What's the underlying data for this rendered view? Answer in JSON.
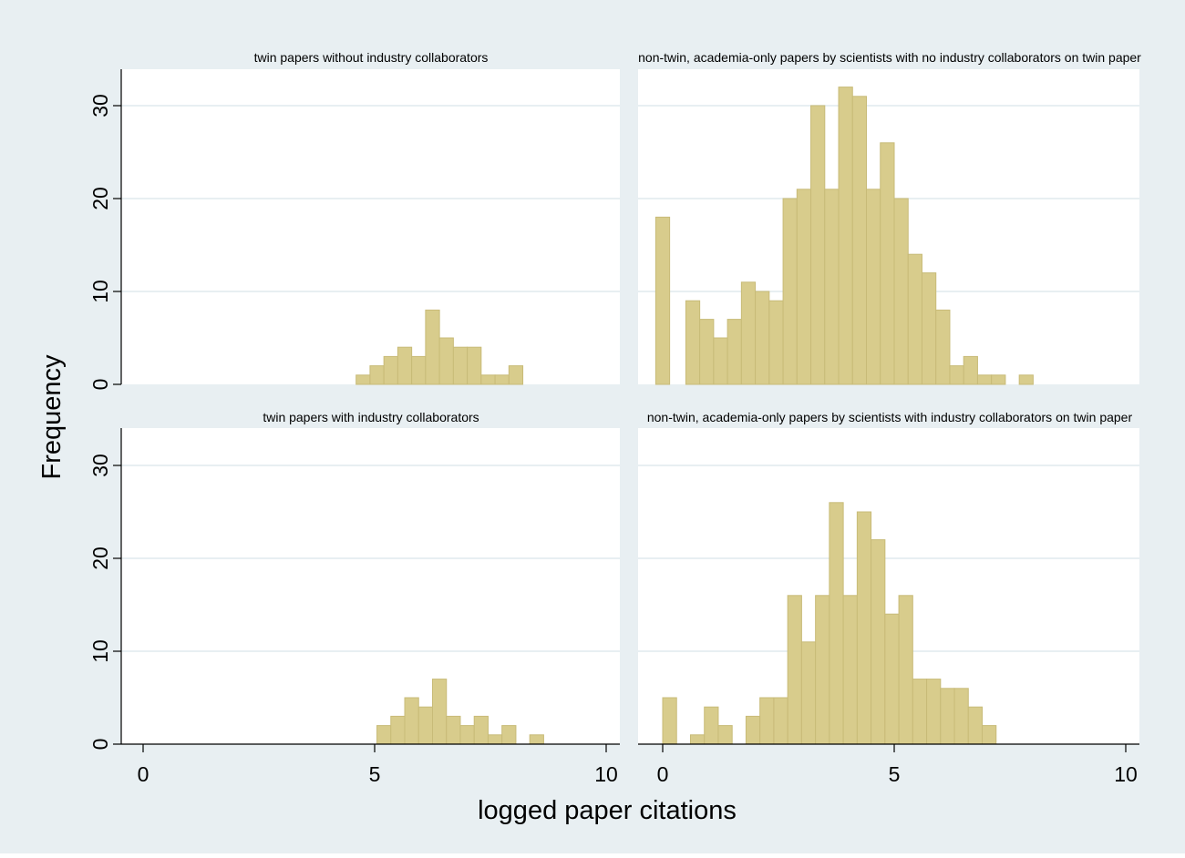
{
  "figure": {
    "ylabel": "Frequency",
    "xlabel": "logged paper citations",
    "colors": {
      "outer_background": "#e8eff2",
      "inner_background": "#ffffff",
      "grid": "#e8eff2",
      "bar_fill": "#d8cc8c",
      "bar_stroke": "#c8bb78",
      "axis": "#000000"
    }
  },
  "chart_data": [
    {
      "type": "bar",
      "title": "twin papers without industry collaborators",
      "xlabel": "",
      "ylabel": "",
      "xlim": [
        -0.5,
        10.5
      ],
      "ylim": [
        0,
        34
      ],
      "y_ticks": [
        0,
        10,
        20,
        30
      ],
      "x_ticks": [],
      "grid": true,
      "bin_width": 0.3,
      "bars": [
        {
          "x": 4.75,
          "y": 1
        },
        {
          "x": 5.05,
          "y": 2
        },
        {
          "x": 5.35,
          "y": 3
        },
        {
          "x": 5.65,
          "y": 4
        },
        {
          "x": 5.95,
          "y": 3
        },
        {
          "x": 6.25,
          "y": 8
        },
        {
          "x": 6.55,
          "y": 5
        },
        {
          "x": 6.85,
          "y": 4
        },
        {
          "x": 7.15,
          "y": 4
        },
        {
          "x": 7.45,
          "y": 1
        },
        {
          "x": 7.75,
          "y": 1
        },
        {
          "x": 8.05,
          "y": 2
        }
      ]
    },
    {
      "type": "bar",
      "title": "non-twin, academia-only papers by scientists with no industry collaborators on twin paper",
      "xlabel": "",
      "ylabel": "",
      "xlim": [
        -0.5,
        10.5
      ],
      "ylim": [
        0,
        34
      ],
      "y_ticks": [],
      "x_ticks": [],
      "grid": true,
      "bin_width": 0.3,
      "bars": [
        {
          "x": 0.0,
          "y": 18
        },
        {
          "x": 0.65,
          "y": 9
        },
        {
          "x": 0.95,
          "y": 7
        },
        {
          "x": 1.25,
          "y": 5
        },
        {
          "x": 1.55,
          "y": 7
        },
        {
          "x": 1.85,
          "y": 11
        },
        {
          "x": 2.15,
          "y": 10
        },
        {
          "x": 2.45,
          "y": 9
        },
        {
          "x": 2.75,
          "y": 20
        },
        {
          "x": 3.05,
          "y": 21
        },
        {
          "x": 3.35,
          "y": 30
        },
        {
          "x": 3.65,
          "y": 21
        },
        {
          "x": 3.95,
          "y": 32
        },
        {
          "x": 4.25,
          "y": 31
        },
        {
          "x": 4.55,
          "y": 21
        },
        {
          "x": 4.85,
          "y": 26
        },
        {
          "x": 5.15,
          "y": 20
        },
        {
          "x": 5.45,
          "y": 14
        },
        {
          "x": 5.75,
          "y": 12
        },
        {
          "x": 6.05,
          "y": 8
        },
        {
          "x": 6.35,
          "y": 2
        },
        {
          "x": 6.65,
          "y": 3
        },
        {
          "x": 6.95,
          "y": 1
        },
        {
          "x": 7.25,
          "y": 1
        },
        {
          "x": 7.85,
          "y": 1
        }
      ]
    },
    {
      "type": "bar",
      "title": "twin papers with industry collaborators",
      "xlabel": "",
      "ylabel": "",
      "xlim": [
        -0.5,
        10.5
      ],
      "ylim": [
        0,
        34
      ],
      "y_ticks": [
        0,
        10,
        20,
        30
      ],
      "x_ticks": [
        0,
        5,
        10
      ],
      "grid": true,
      "bin_width": 0.3,
      "bars": [
        {
          "x": 5.2,
          "y": 2
        },
        {
          "x": 5.5,
          "y": 3
        },
        {
          "x": 5.8,
          "y": 5
        },
        {
          "x": 6.1,
          "y": 4
        },
        {
          "x": 6.4,
          "y": 7
        },
        {
          "x": 6.7,
          "y": 3
        },
        {
          "x": 7.0,
          "y": 2
        },
        {
          "x": 7.3,
          "y": 3
        },
        {
          "x": 7.6,
          "y": 1
        },
        {
          "x": 7.9,
          "y": 2
        },
        {
          "x": 8.5,
          "y": 1
        }
      ]
    },
    {
      "type": "bar",
      "title": "non-twin, academia-only papers by scientists with industry collaborators on twin paper",
      "xlabel": "",
      "ylabel": "",
      "xlim": [
        -0.5,
        10.5
      ],
      "ylim": [
        0,
        34
      ],
      "y_ticks": [],
      "x_ticks": [
        0,
        5,
        10
      ],
      "grid": true,
      "bin_width": 0.3,
      "bars": [
        {
          "x": 0.15,
          "y": 5
        },
        {
          "x": 0.75,
          "y": 1
        },
        {
          "x": 1.05,
          "y": 4
        },
        {
          "x": 1.35,
          "y": 2
        },
        {
          "x": 1.95,
          "y": 3
        },
        {
          "x": 2.25,
          "y": 5
        },
        {
          "x": 2.55,
          "y": 5
        },
        {
          "x": 2.85,
          "y": 16
        },
        {
          "x": 3.15,
          "y": 11
        },
        {
          "x": 3.45,
          "y": 16
        },
        {
          "x": 3.75,
          "y": 26
        },
        {
          "x": 4.05,
          "y": 16
        },
        {
          "x": 4.35,
          "y": 25
        },
        {
          "x": 4.65,
          "y": 22
        },
        {
          "x": 4.95,
          "y": 14
        },
        {
          "x": 5.25,
          "y": 16
        },
        {
          "x": 5.55,
          "y": 7
        },
        {
          "x": 5.85,
          "y": 7
        },
        {
          "x": 6.15,
          "y": 6
        },
        {
          "x": 6.45,
          "y": 6
        },
        {
          "x": 6.75,
          "y": 4
        },
        {
          "x": 7.05,
          "y": 2
        }
      ]
    }
  ]
}
